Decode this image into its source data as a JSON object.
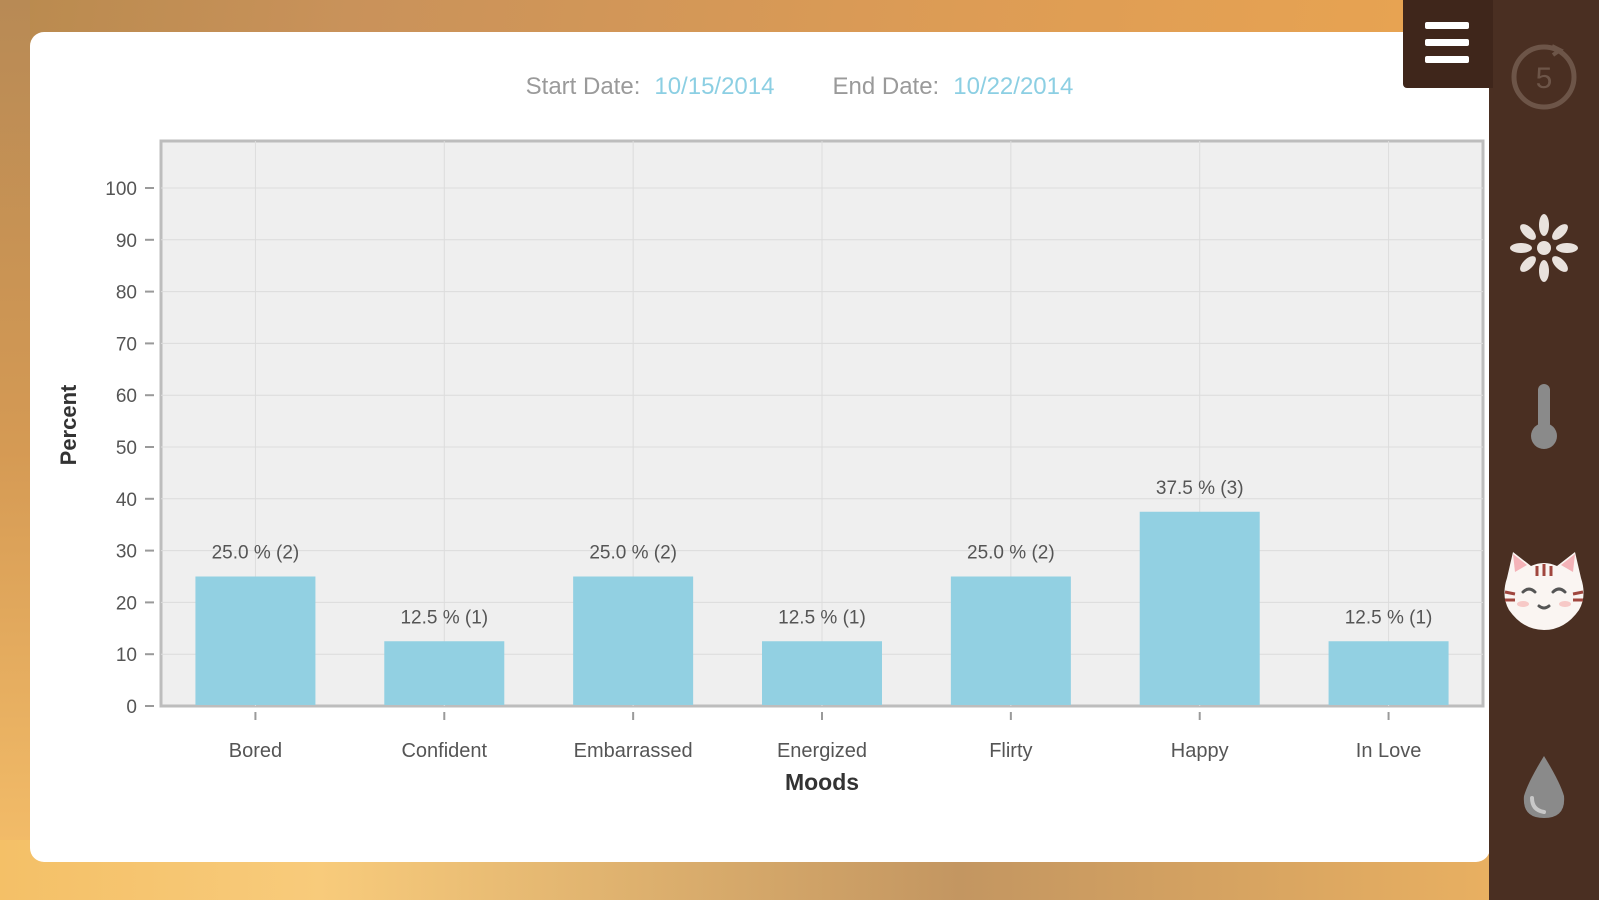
{
  "filter": {
    "start_label": "Start Date:",
    "start_value": "10/15/2014",
    "end_label": "End Date:",
    "end_value": "10/22/2014"
  },
  "sidebar": {
    "timer_value": "5",
    "icons": [
      "menu-icon",
      "timer-icon",
      "flower-icon",
      "thermometer-icon",
      "cat-mood-icon",
      "water-drop-icon"
    ]
  },
  "colors": {
    "bar": "#92d0e2",
    "date_accent": "#8ccfe3",
    "rail": "#4a2f22"
  },
  "chart_data": {
    "type": "bar",
    "xlabel": "Moods",
    "ylabel": "Percent",
    "ylim": [
      0,
      100
    ],
    "yticks": [
      0,
      10,
      20,
      30,
      40,
      50,
      60,
      70,
      80,
      90,
      100
    ],
    "categories": [
      "Bored",
      "Confident",
      "Embarrassed",
      "Energized",
      "Flirty",
      "Happy",
      "In Love"
    ],
    "values": [
      25.0,
      12.5,
      25.0,
      12.5,
      25.0,
      37.5,
      12.5
    ],
    "data_labels": [
      "25.0 % (2)",
      "12.5 % (1)",
      "25.0 % (2)",
      "12.5 % (1)",
      "25.0 % (2)",
      "37.5 % (3)",
      "12.5 % (1)"
    ],
    "grid": true
  }
}
